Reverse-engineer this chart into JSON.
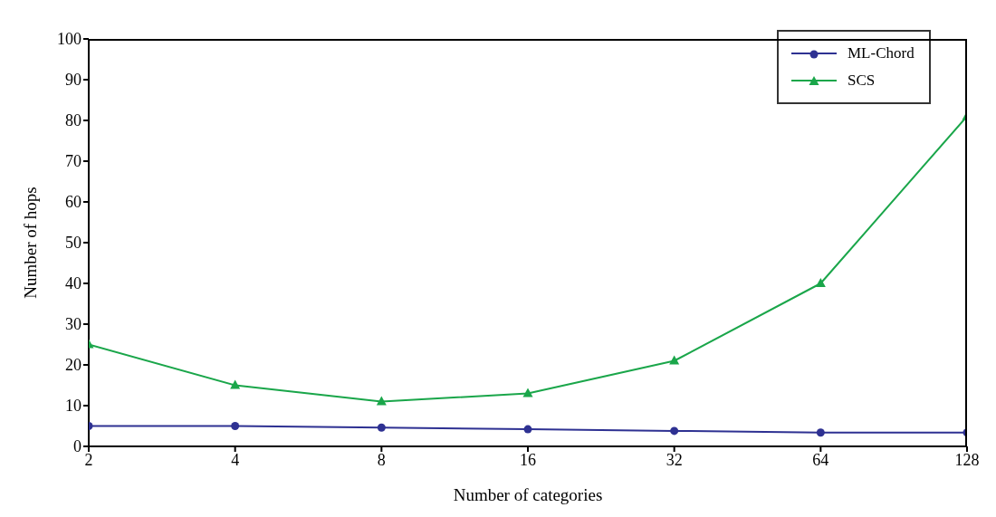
{
  "chart_data": {
    "type": "line",
    "xlabel": "Number of categories",
    "ylabel": "Number of hops",
    "categories": [
      "2",
      "4",
      "8",
      "16",
      "32",
      "64",
      "128"
    ],
    "series": [
      {
        "name": "ML-Chord",
        "color": "#2e3192",
        "marker": "circle",
        "values": [
          5,
          5,
          4.6,
          4.2,
          3.8,
          3.4,
          3.4
        ]
      },
      {
        "name": "SCS",
        "color": "#1aa64a",
        "marker": "triangle",
        "values": [
          25,
          15,
          11,
          13,
          21,
          40,
          81
        ]
      }
    ],
    "ylim": [
      0,
      100
    ],
    "yticks": [
      0,
      10,
      20,
      30,
      40,
      50,
      60,
      70,
      80,
      90,
      100
    ],
    "grid": false,
    "legend": "top right",
    "line_style": "solid"
  }
}
